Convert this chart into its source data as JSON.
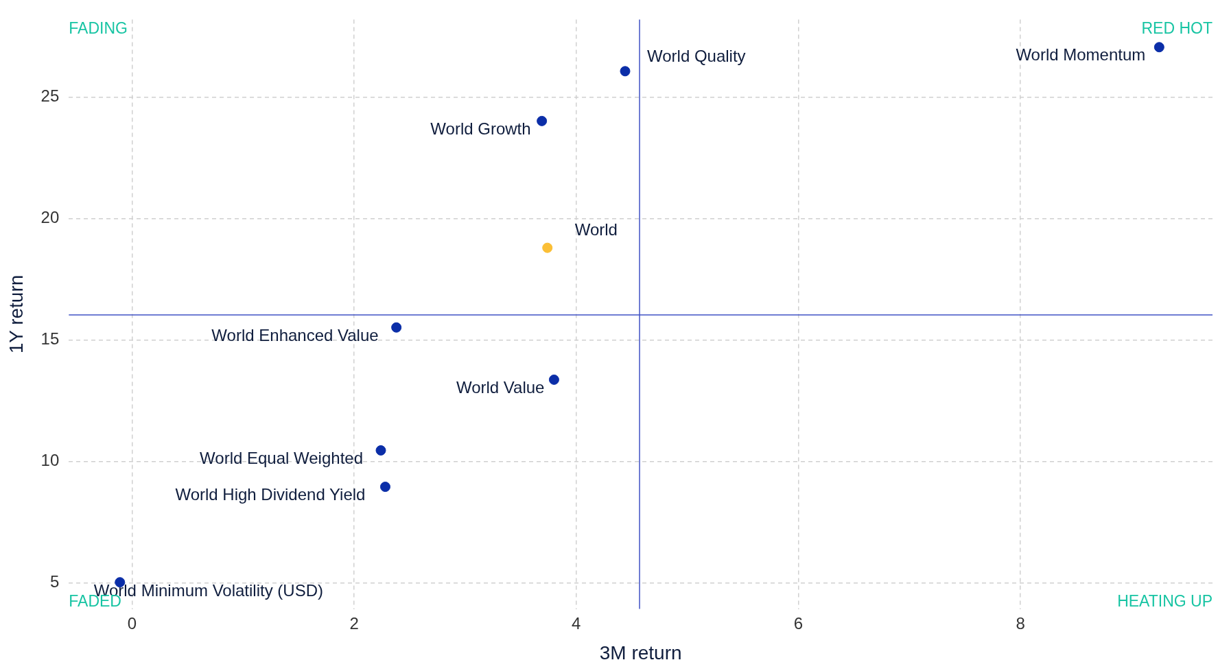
{
  "chart_data": {
    "type": "scatter",
    "xlabel": "3M return",
    "ylabel": "1Y return",
    "xlim": [
      -0.57,
      9.73
    ],
    "ylim": [
      3.93,
      28.2
    ],
    "xticks": [
      0,
      2,
      4,
      6,
      8
    ],
    "yticks": [
      5,
      10,
      15,
      20,
      25
    ],
    "grid": true,
    "legend": false,
    "marker": "circle",
    "annotations": [
      "FADING",
      "RED HOT",
      "FADED",
      "HEATING UP"
    ],
    "ref_lines": [
      {
        "axis": "x",
        "value": 4.57,
        "color": "#3f51c4"
      },
      {
        "axis": "y",
        "value": 16.04,
        "color": "#3f51c4"
      }
    ],
    "series": [
      {
        "name": "World Momentum",
        "color": "#0b2ea8",
        "x": [
          9.25
        ],
        "values": [
          27.06
        ]
      },
      {
        "name": "World Quality",
        "color": "#0b2ea8",
        "x": [
          4.44
        ],
        "values": [
          26.07
        ]
      },
      {
        "name": "World Growth",
        "color": "#0b2ea8",
        "x": [
          3.69
        ],
        "values": [
          24.02
        ]
      },
      {
        "name": "World",
        "color": "#fbbf36",
        "x": [
          3.74
        ],
        "values": [
          18.8
        ]
      },
      {
        "name": "World Enhanced Value",
        "color": "#0b2ea8",
        "x": [
          2.38
        ],
        "values": [
          15.52
        ]
      },
      {
        "name": "World Value",
        "color": "#0b2ea8",
        "x": [
          3.8
        ],
        "values": [
          13.37
        ]
      },
      {
        "name": "World Equal Weighted",
        "color": "#0b2ea8",
        "x": [
          2.24
        ],
        "values": [
          10.46
        ]
      },
      {
        "name": "World High Dividend Yield",
        "color": "#0b2ea8",
        "x": [
          2.28
        ],
        "values": [
          8.96
        ]
      },
      {
        "name": "World Minimum Volatility (USD)",
        "color": "#0b2ea8",
        "x": [
          -0.11
        ],
        "values": [
          5.03
        ]
      }
    ]
  }
}
